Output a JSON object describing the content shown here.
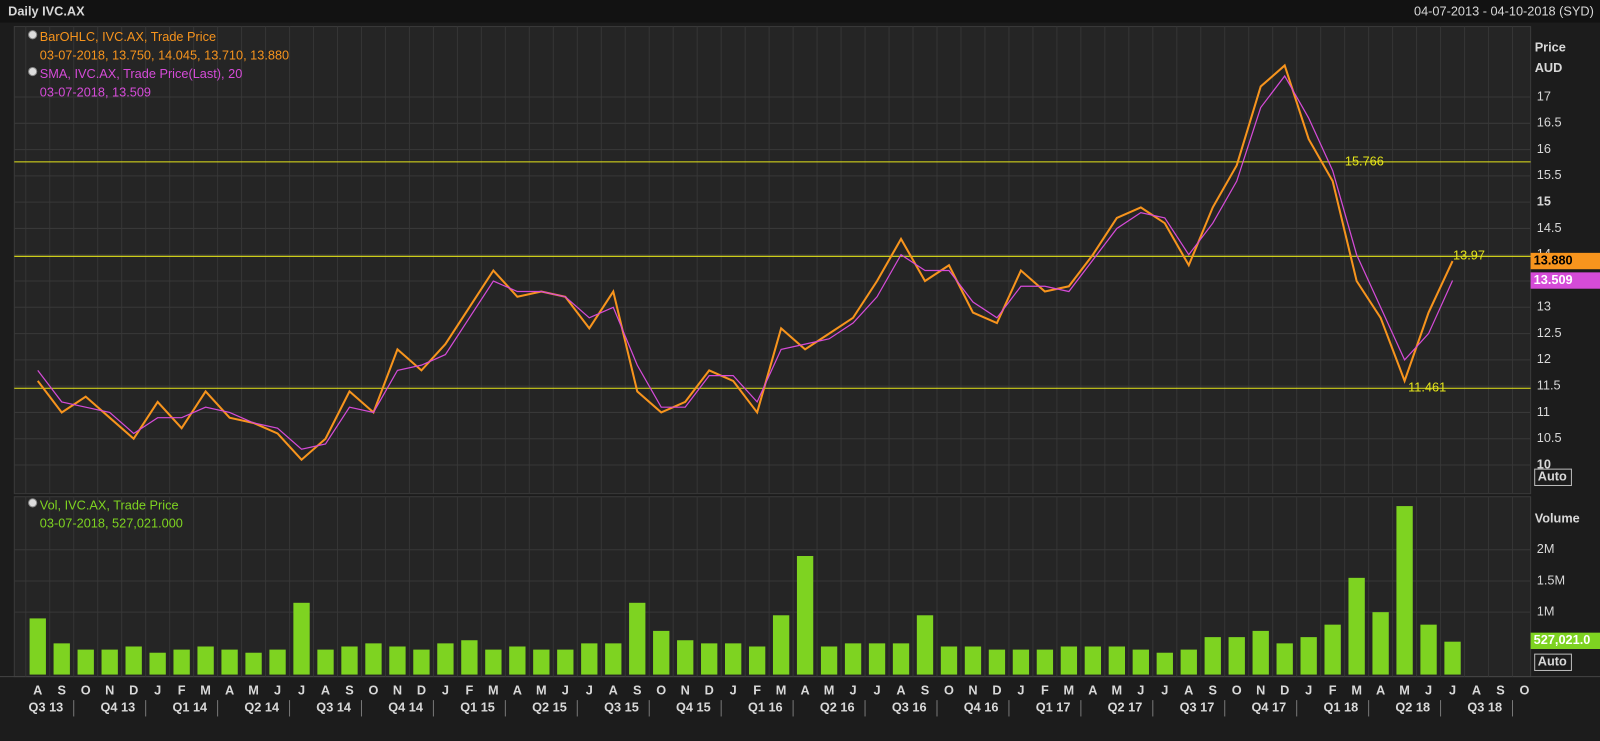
{
  "header": {
    "title": "Daily IVC.AX",
    "date_range": "04-07-2013 - 04-10-2018 (SYD)"
  },
  "chart_data": [
    {
      "type": "line",
      "categories": [
        "A",
        "S",
        "O",
        "N",
        "D",
        "J",
        "F",
        "M",
        "A",
        "M",
        "J",
        "J",
        "A",
        "S",
        "O",
        "N",
        "D",
        "J",
        "F",
        "M",
        "A",
        "M",
        "J",
        "J",
        "A",
        "S",
        "O",
        "N",
        "D",
        "J",
        "F",
        "M",
        "A",
        "M",
        "J",
        "J",
        "A",
        "S",
        "O",
        "N",
        "D",
        "J",
        "F",
        "M",
        "A",
        "M",
        "J",
        "J",
        "A",
        "S",
        "O",
        "N",
        "D",
        "J",
        "F",
        "M",
        "A",
        "M",
        "J",
        "J",
        "A",
        "S",
        "O"
      ],
      "quarters": [
        "Q3 13",
        "Q4 13",
        "Q1 14",
        "Q2 14",
        "Q3 14",
        "Q4 14",
        "Q1 15",
        "Q2 15",
        "Q3 15",
        "Q4 15",
        "Q1 16",
        "Q2 16",
        "Q3 16",
        "Q4 16",
        "Q1 17",
        "Q2 17",
        "Q3 17",
        "Q4 17",
        "Q1 18",
        "Q2 18",
        "Q3 18"
      ],
      "series": [
        {
          "name": "BarOHLC, IVC.AX, Trade Price",
          "detail": "03-07-2018, 13.750, 14.045, 13.710, 13.880",
          "color": "#f7941d",
          "values": [
            11.6,
            11.0,
            11.3,
            10.9,
            10.5,
            11.2,
            10.7,
            11.4,
            10.9,
            10.8,
            10.6,
            10.1,
            10.5,
            11.4,
            11.0,
            12.2,
            11.8,
            12.3,
            13.0,
            13.7,
            13.2,
            13.3,
            13.2,
            12.6,
            13.3,
            11.4,
            11.0,
            11.2,
            11.8,
            11.6,
            11.0,
            12.6,
            12.2,
            12.5,
            12.8,
            13.5,
            14.3,
            13.5,
            13.8,
            12.9,
            12.7,
            13.7,
            13.3,
            13.4,
            14.0,
            14.7,
            14.9,
            14.6,
            13.8,
            14.9,
            15.7,
            17.2,
            17.6,
            16.2,
            15.4,
            13.5,
            12.8,
            11.6,
            12.9,
            13.88,
            null,
            null,
            null
          ],
          "last_value": 13.88,
          "last_label": "13.880"
        },
        {
          "name": "SMA, IVC.AX, Trade Price(Last),  20",
          "detail": "03-07-2018, 13.509",
          "color": "#d54bd8",
          "values": [
            11.8,
            11.2,
            11.1,
            11.0,
            10.6,
            10.9,
            10.9,
            11.1,
            11.0,
            10.8,
            10.7,
            10.3,
            10.4,
            11.1,
            11.0,
            11.8,
            11.9,
            12.1,
            12.8,
            13.5,
            13.3,
            13.3,
            13.2,
            12.8,
            13.0,
            11.9,
            11.1,
            11.1,
            11.7,
            11.7,
            11.2,
            12.2,
            12.3,
            12.4,
            12.7,
            13.2,
            14.0,
            13.7,
            13.7,
            13.1,
            12.8,
            13.4,
            13.4,
            13.3,
            13.9,
            14.5,
            14.8,
            14.7,
            14.0,
            14.6,
            15.4,
            16.8,
            17.4,
            16.6,
            15.6,
            14.0,
            13.0,
            12.0,
            12.5,
            13.509,
            null,
            null,
            null
          ],
          "last_value": 13.509
        }
      ],
      "reference_lines": [
        15.766,
        13.97,
        11.461
      ],
      "reference_color": "#e5e51a",
      "ylabel_lines": [
        "Price",
        "AUD"
      ],
      "ylim": [
        9.455,
        18.34
      ],
      "yticks": [
        10,
        10.5,
        11,
        11.5,
        12,
        12.5,
        13,
        13.5,
        14,
        14.5,
        15,
        15.5,
        16,
        16.5,
        17
      ],
      "grid": true,
      "scale_button": "Auto"
    },
    {
      "type": "bar",
      "series": [
        {
          "name": "Vol, IVC.AX, Trade Price",
          "detail": "03-07-2018, 527,021.000",
          "color": "#7ed321",
          "values": [
            900000,
            500000,
            400000,
            400000,
            450000,
            350000,
            400000,
            450000,
            400000,
            350000,
            400000,
            1150000,
            400000,
            450000,
            500000,
            450000,
            400000,
            500000,
            550000,
            400000,
            450000,
            400000,
            400000,
            500000,
            500000,
            1150000,
            700000,
            550000,
            500000,
            500000,
            450000,
            950000,
            1900000,
            450000,
            500000,
            500000,
            500000,
            950000,
            450000,
            450000,
            400000,
            400000,
            400000,
            450000,
            450000,
            450000,
            400000,
            350000,
            400000,
            600000,
            600000,
            700000,
            500000,
            600000,
            800000,
            1550000,
            1000000,
            2700000,
            800000,
            527021,
            null,
            null,
            null
          ],
          "last_value": 527021,
          "last_label": "527,021.0"
        }
      ],
      "ylabel": "Volume",
      "ylim": [
        0,
        2850000
      ],
      "yticks": [
        {
          "value": 1000000,
          "label": "1M"
        },
        {
          "value": 1500000,
          "label": "1.5M"
        },
        {
          "value": 2000000,
          "label": "2M"
        }
      ],
      "grid": true,
      "scale_button": "Auto"
    }
  ]
}
